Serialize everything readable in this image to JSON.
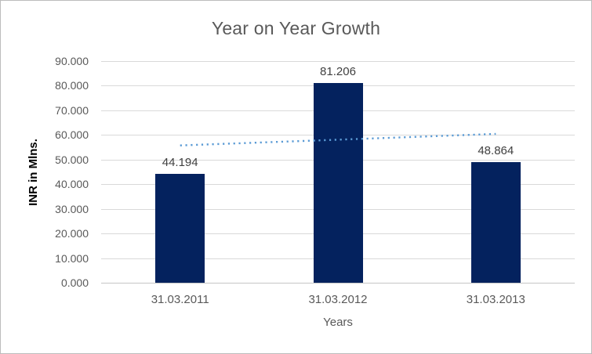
{
  "chart_data": {
    "type": "bar",
    "title": "Year on Year Growth",
    "categories": [
      "31.03.2011",
      "31.03.2012",
      "31.03.2013"
    ],
    "values": [
      44.194,
      81.206,
      48.864
    ],
    "data_labels": [
      "44.194",
      "81.206",
      "48.864"
    ],
    "xlabel": "Years",
    "ylabel": "INR in Mlns.",
    "ylim": [
      0,
      90
    ],
    "ytick_step": 10,
    "ytick_labels": [
      "0.000",
      "10.000",
      "20.000",
      "30.000",
      "40.000",
      "50.000",
      "60.000",
      "70.000",
      "80.000",
      "90.000"
    ],
    "grid": true,
    "legend": "none",
    "colors": {
      "bar": "#04225e",
      "trendline": "#5b9bd5",
      "gridline": "#d9d9d9",
      "axis_line": "#c6c6c6",
      "title_text": "#595959",
      "tick_text": "#595959",
      "data_label_text": "#404040"
    },
    "trendline": {
      "kind": "linear",
      "style": "dotted",
      "start_value": 55.75,
      "end_value": 60.42
    }
  }
}
